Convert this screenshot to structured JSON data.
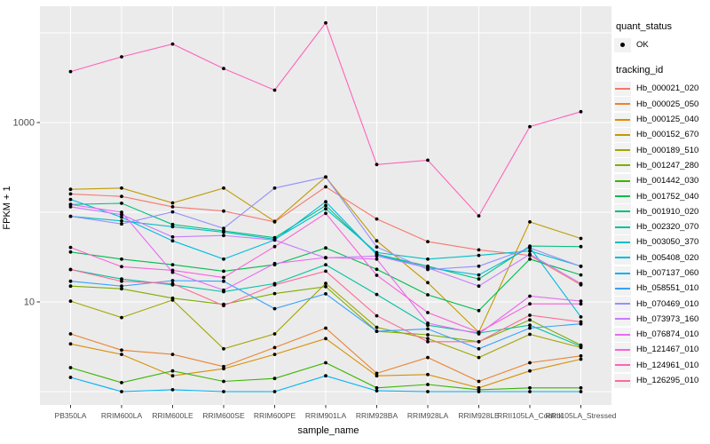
{
  "figure": {
    "background": "#FFFFFF",
    "panel_background": "#EBEBEB",
    "grid_color": "#FFFFFF",
    "tick_mark_color": "#333333",
    "axis_text_color": "#4D4D4D",
    "point_color": "#000000"
  },
  "x_axis": {
    "title": "sample_name"
  },
  "y_axis": {
    "title": "FPKM + 1",
    "scale": "log10",
    "major_ticks": [
      {
        "value": 10,
        "label": "10"
      },
      {
        "value": 1000,
        "label": "1000"
      }
    ],
    "minor_ticks": [
      1,
      100,
      10000
    ]
  },
  "legend": {
    "quant_status": {
      "title": "quant_status",
      "items": [
        {
          "label": "OK",
          "glyph": "point"
        }
      ]
    },
    "tracking_id_title": "tracking_id"
  },
  "chart_data": {
    "type": "line",
    "marker": "point",
    "marker_color": "#000000",
    "ylog": true,
    "ylim": [
      1,
      20000
    ],
    "grid": true,
    "legend_position": "right",
    "title": "",
    "xlabel": "sample_name",
    "ylabel": "FPKM + 1",
    "x": [
      "PB350LA",
      "RRIM600LA",
      "RRIM600LE",
      "RRIM600SE",
      "RRIM600PE",
      "RRIM901LA",
      "RRIM928BA",
      "RRIM928LA",
      "RRIM928LE",
      "RRII105LA_Control",
      "RRII105LA_Stressed"
    ],
    "series": [
      {
        "name": "Hb_000021_020",
        "color": "#F8766D",
        "values": [
          160,
          150,
          115,
          103,
          78,
          192,
          84,
          47,
          38,
          33,
          15.5
        ]
      },
      {
        "name": "Hb_000025_050",
        "color": "#EA8331",
        "values": [
          4.4,
          2.9,
          2.6,
          1.9,
          3.1,
          5.1,
          1.6,
          2.4,
          1.3,
          2.1,
          2.5
        ]
      },
      {
        "name": "Hb_000125_040",
        "color": "#D89000",
        "values": [
          3.4,
          2.6,
          1.5,
          1.8,
          2.6,
          3.9,
          1.5,
          1.55,
          1.1,
          1.7,
          2.3
        ]
      },
      {
        "name": "Hb_000152_670",
        "color": "#C09B00",
        "values": [
          180,
          186,
          127,
          186,
          79,
          247,
          48,
          16.4,
          4.6,
          78,
          51
        ]
      },
      {
        "name": "Hb_000189_510",
        "color": "#A3A500",
        "values": [
          10.2,
          6.7,
          10.5,
          3.0,
          4.4,
          16.1,
          5.2,
          3.9,
          2.4,
          4.35,
          3.1
        ]
      },
      {
        "name": "Hb_001247_280",
        "color": "#7CAE00",
        "values": [
          15,
          14,
          11,
          9.4,
          12.4,
          14.8,
          4.7,
          4.3,
          3.6,
          6.3,
          3.3
        ]
      },
      {
        "name": "Hb_001442_030",
        "color": "#39B600",
        "values": [
          1.85,
          1.26,
          1.7,
          1.3,
          1.4,
          2.1,
          1.1,
          1.2,
          1.05,
          1.1,
          1.1
        ]
      },
      {
        "name": "Hb_001752_040",
        "color": "#00BB4E",
        "values": [
          36,
          30,
          26,
          22,
          26,
          40,
          23.1,
          12,
          8.0,
          30,
          20
        ]
      },
      {
        "name": "Hb_001910_020",
        "color": "#00BF7D",
        "values": [
          122,
          126,
          73,
          62,
          52,
          119,
          34,
          25,
          18,
          42,
          41.4
        ]
      },
      {
        "name": "Hb_002320_070",
        "color": "#00C1A3",
        "values": [
          23,
          18,
          15.5,
          13,
          16,
          26,
          12.1,
          5.5,
          4.5,
          5.5,
          3.2
        ]
      },
      {
        "name": "Hb_003050_370",
        "color": "#00BFC4",
        "values": [
          90,
          80,
          69,
          60,
          50,
          109,
          35.5,
          30,
          33,
          37,
          25
        ]
      },
      {
        "name": "Hb_005408_020",
        "color": "#00BAE0",
        "values": [
          139,
          88,
          48,
          30,
          49,
          131,
          33.7,
          24,
          20,
          40.5,
          6.8
        ]
      },
      {
        "name": "Hb_007137_060",
        "color": "#00B0F6",
        "values": [
          1.44,
          1.0,
          1.05,
          1.0,
          1.0,
          1.5,
          1.02,
          1.0,
          1.0,
          1.0,
          1.0
        ]
      },
      {
        "name": "Hb_058551_010",
        "color": "#35A2FF",
        "values": [
          17,
          15,
          17.3,
          17,
          8.4,
          12.3,
          4.7,
          5.0,
          3.0,
          5.1,
          5.7
        ]
      },
      {
        "name": "Hb_070469_010",
        "color": "#9590FF",
        "values": [
          90,
          74,
          101,
          66,
          186,
          247,
          41,
          23,
          25,
          40,
          24.9
        ]
      },
      {
        "name": "Hb_073973_160",
        "color": "#C77CFF",
        "values": [
          115,
          94,
          53,
          55,
          49,
          31,
          32.5,
          24,
          15,
          34,
          16
        ]
      },
      {
        "name": "Hb_076874_010",
        "color": "#E76BF3",
        "values": [
          122,
          100,
          21.4,
          13.5,
          26.8,
          31.3,
          30,
          5.8,
          4.4,
          11.6,
          10.2
        ]
      },
      {
        "name": "Hb_121467_010",
        "color": "#FA62DB",
        "values": [
          40.5,
          24.7,
          22.5,
          18.7,
          41.4,
          97,
          19.8,
          7.6,
          4.6,
          9.5,
          9.5
        ]
      },
      {
        "name": "Hb_124961_010",
        "color": "#FF62BC",
        "values": [
          3700,
          5400,
          7500,
          4000,
          2300,
          12900,
          340,
          380,
          91,
          900,
          1320
        ]
      },
      {
        "name": "Hb_126295_010",
        "color": "#FF6A98",
        "values": [
          23,
          17,
          16,
          9.1,
          15.5,
          22,
          7.0,
          3.6,
          3.6,
          7.1,
          6.0
        ]
      }
    ]
  }
}
